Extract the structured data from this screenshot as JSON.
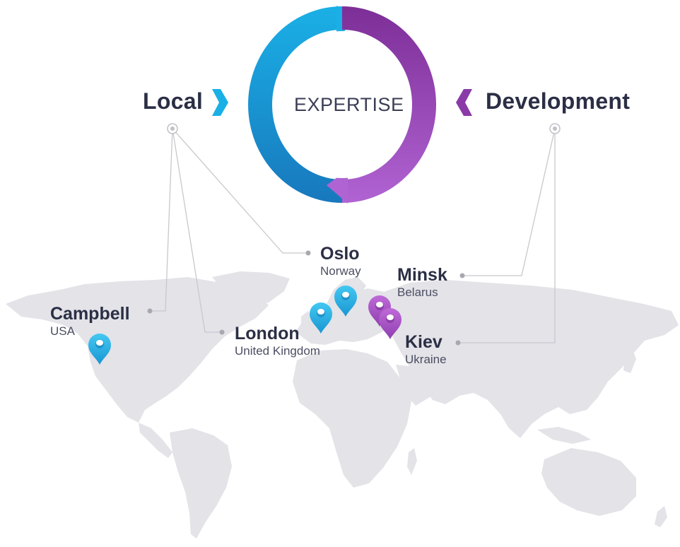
{
  "cycle": {
    "center_label": "EXPERTISE",
    "left_label": "Local",
    "right_label": "Development",
    "colors": {
      "local": "#1aa6dc",
      "development": "#8e3fb0"
    }
  },
  "locations": [
    {
      "city": "Oslo",
      "country": "Norway",
      "group": "local"
    },
    {
      "city": "Campbell",
      "country": "USA",
      "group": "local"
    },
    {
      "city": "London",
      "country": "United Kingdom",
      "group": "local"
    },
    {
      "city": "Minsk",
      "country": "Belarus",
      "group": "development"
    },
    {
      "city": "Kiev",
      "country": "Ukraine",
      "group": "development"
    }
  ],
  "map": {
    "land_color": "#e3e3e8",
    "connector_color": "#c6c6cc"
  }
}
